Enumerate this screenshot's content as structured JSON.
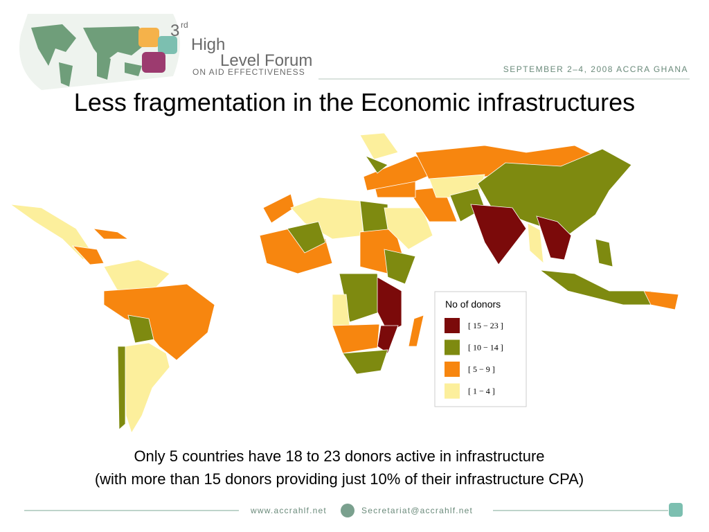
{
  "header": {
    "logo": {
      "number": "3",
      "superscript": "rd",
      "line1": "High",
      "line2": "Level Forum",
      "line3": "ON AID EFFECTIVENESS"
    },
    "event": "SEPTEMBER 2–4, 2008 ACCRA GHANA"
  },
  "title": "Less fragmentation in the Economic infrastructures",
  "map": {
    "legend": {
      "title": "No of donors",
      "items": [
        {
          "label": "[ 15 − 23 ]",
          "color": "#7b0a0a"
        },
        {
          "label": "[ 10 − 14 ]",
          "color": "#7e8a10"
        },
        {
          "label": "[ 5 − 9 ]",
          "color": "#f7860f"
        },
        {
          "label": "[ 1 − 4 ]",
          "color": "#fcef9c"
        }
      ]
    }
  },
  "caption": [
    "Only 5 countries have 18 to 23 donors active in infrastructure",
    "(with more than 15 donors providing just 10% of their infrastructure CPA)"
  ],
  "footer": {
    "website": "www.accrahlf.net",
    "email": "Secretariat@accrahlf.net"
  }
}
